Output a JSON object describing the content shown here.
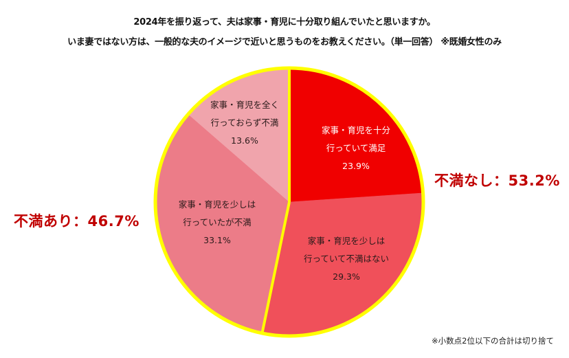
{
  "title": {
    "line1": "2024年を振り返って、夫は家事・育児に十分取り組んでいたと思いますか。",
    "line2": "いま妻ではない方は、一般的な夫のイメージで近いと思うものをお教えください。（単一回答） ※既婚女性のみ"
  },
  "groups": {
    "no_dissatisfaction": "不満なし：53.2%",
    "dissatisfaction": "不満あり：46.7%"
  },
  "slices": [
    {
      "line1": "家事・育児を十分",
      "line2": "行っていて満足",
      "value_label": "23.9%"
    },
    {
      "line1": "家事・育児を少しは",
      "line2": "行っていて不満はない",
      "value_label": "29.3%"
    },
    {
      "line1": "家事・育児を少しは",
      "line2": "行っていたが不満",
      "value_label": "33.1%"
    },
    {
      "line1": "家事・育児を全く",
      "line2": "行っておらず不満",
      "value_label": "13.6%"
    }
  ],
  "footnote": "※小数点2位以下の合計は切り捨て",
  "colors": {
    "slice1": "#f00000",
    "slice2": "#f0505a",
    "slice3": "#ec7c88",
    "slice4": "#f0a4ac",
    "border": "#ffff00",
    "group_text": "#c00000"
  },
  "chart_data": {
    "type": "pie",
    "title": "2024年を振り返って、夫は家事・育児に十分取り組んでいたと思いますか。いま妻ではない方は、一般的な夫のイメージで近いと思うものをお教えください。（単一回答） ※既婚女性のみ",
    "categories": [
      "家事・育児を十分行っていて満足",
      "家事・育児を少しは行っていて不満はない",
      "家事・育児を少しは行っていたが不満",
      "家事・育児を全く行っておらず不満"
    ],
    "values": [
      23.9,
      29.3,
      33.1,
      13.6
    ],
    "unit": "%",
    "start_angle": "12 o'clock",
    "direction": "clockwise",
    "annotations": [
      {
        "text": "不満なし：53.2%",
        "covers": [
          0,
          1
        ],
        "position": "right"
      },
      {
        "text": "不満あり：46.7%",
        "covers": [
          2,
          3
        ],
        "position": "left"
      },
      {
        "text": "※小数点2位以下の合計は切り捨て",
        "position": "bottom-right"
      }
    ],
    "legend": "none (labels inside slices)"
  }
}
